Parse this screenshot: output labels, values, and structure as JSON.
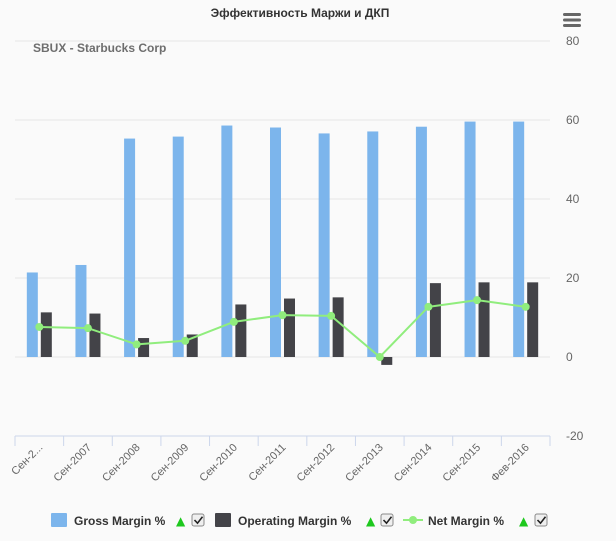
{
  "icons": {
    "context_menu": "hamburger-menu-icon",
    "legend_checkbox": "checkbox-checked-icon"
  },
  "chart_data": {
    "type": "bar",
    "title": "Эффективность Маржи и ДКП",
    "subtitle": "SBUX - Starbucks Corp",
    "categories": [
      "Сен-2...",
      "Сен-2007",
      "Сен-2008",
      "Сен-2009",
      "Сен-2010",
      "Сен-2011",
      "Сен-2012",
      "Сен-2013",
      "Сен-2014",
      "Сен-2015",
      "Фев-2016"
    ],
    "series": [
      {
        "name": "Gross Margin %",
        "type": "bar",
        "color": "#7cb5ec",
        "values": [
          21.4,
          23.3,
          55.3,
          55.8,
          58.6,
          58.1,
          56.6,
          57.1,
          58.3,
          59.6,
          59.6
        ]
      },
      {
        "name": "Operating Margin %",
        "type": "bar",
        "color": "#434348",
        "values": [
          11.3,
          11.0,
          4.8,
          5.7,
          13.3,
          14.8,
          15.1,
          -2.0,
          18.7,
          18.9,
          18.9
        ]
      },
      {
        "name": "Net Margin %",
        "type": "line",
        "color": "#90ed7d",
        "values": [
          7.6,
          7.3,
          3.2,
          4.1,
          8.9,
          10.6,
          10.4,
          0.0,
          12.7,
          14.4,
          12.7
        ]
      }
    ],
    "xlabel": "",
    "ylabel": "",
    "ylim": [
      -20,
      80
    ],
    "yticks": [
      -20,
      0,
      20,
      40,
      60,
      80
    ],
    "y_axis_side": "right",
    "grid": true,
    "legend_position": "bottom"
  },
  "legend": {
    "trend_symbol": "▲",
    "trend_color": "#1ec81e",
    "checked": [
      true,
      true,
      true
    ]
  }
}
